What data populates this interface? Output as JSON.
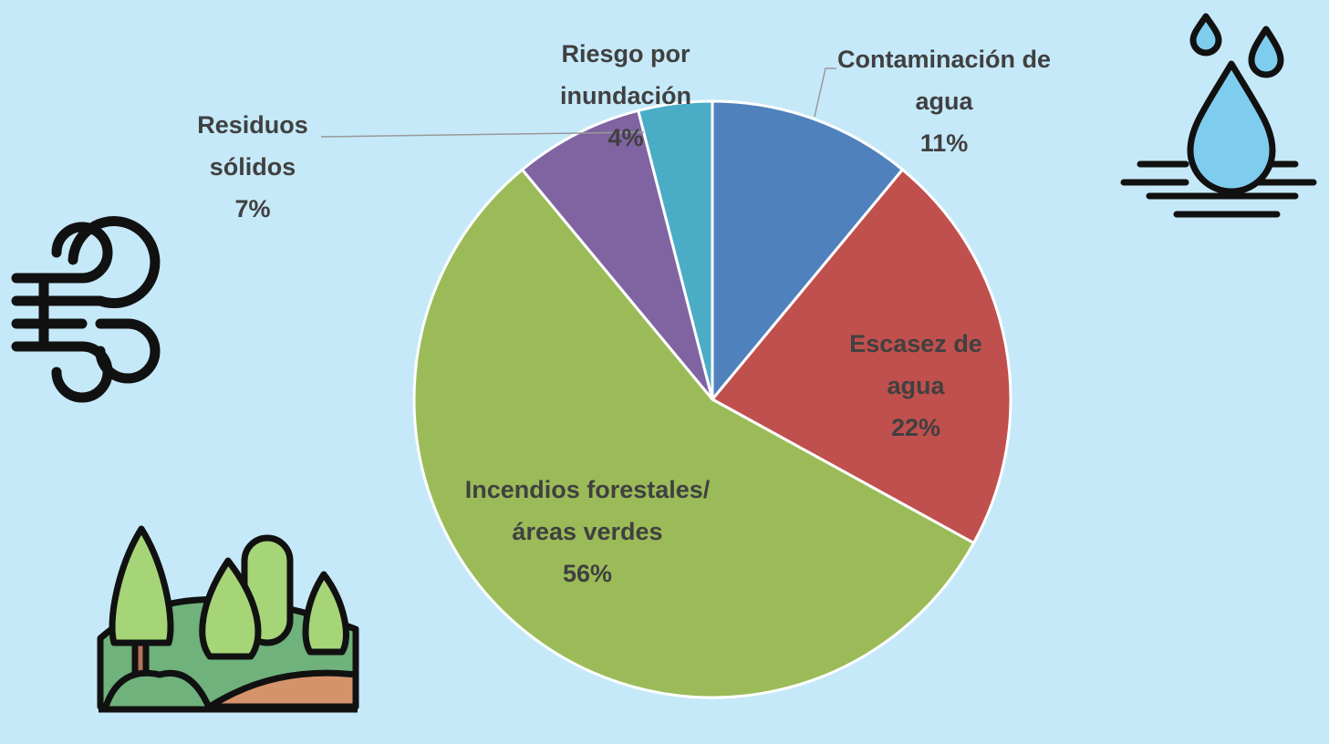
{
  "chart_data": {
    "type": "pie",
    "categories": [
      "Contaminación de agua",
      "Escasez de agua",
      "Incendios forestales/áreas verdes",
      "Residuos sólidos",
      "Riesgo por inundación"
    ],
    "values": [
      11,
      22,
      56,
      7,
      4
    ],
    "value_labels": [
      "11%",
      "22%",
      "56%",
      "7%",
      "4%"
    ],
    "colors": [
      "#4f81bd",
      "#c0504d",
      "#9bbb59",
      "#8064a2",
      "#4bacc6"
    ]
  }
}
